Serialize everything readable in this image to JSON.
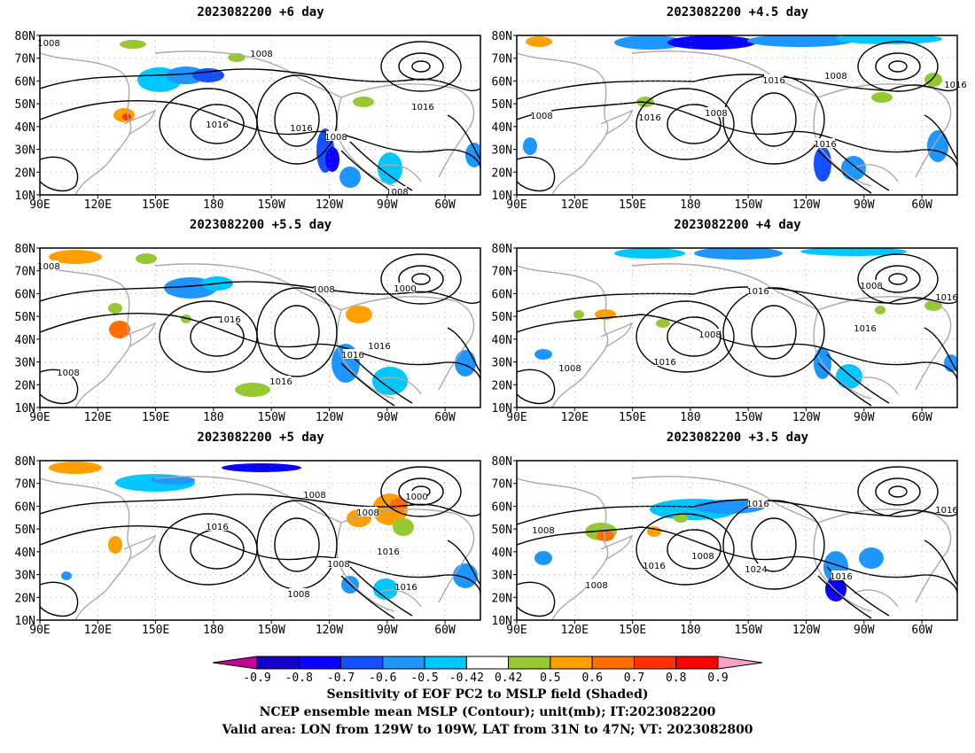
{
  "panels": [
    {
      "title": "2023082200  +6 day",
      "contour_labels": [
        "1008",
        "1008",
        "1016",
        "1016",
        "1016",
        "1008",
        "1008"
      ]
    },
    {
      "title": "2023082200  +4.5 day",
      "contour_labels": [
        "1008",
        "1016",
        "1008",
        "1008",
        "1016",
        "1016",
        "1016"
      ]
    },
    {
      "title": "2023082200  +5.5 day",
      "contour_labels": [
        "1008",
        "1008",
        "1000",
        "1016",
        "1016",
        "1016",
        "1008",
        "1016"
      ]
    },
    {
      "title": "2023082200  +4 day",
      "contour_labels": [
        "1016",
        "1008",
        "1008",
        "1016",
        "1016",
        "1008",
        "1016"
      ]
    },
    {
      "title": "2023082200  +5 day",
      "contour_labels": [
        "1008",
        "1000",
        "1008",
        "1016",
        "1016",
        "1008",
        "1016",
        "1008"
      ]
    },
    {
      "title": "2023082200  +3.5 day",
      "contour_labels": [
        "1008",
        "1016",
        "1016",
        "1016",
        "1008",
        "1024",
        "1016",
        "1008"
      ]
    }
  ],
  "lat_labels": [
    "80N",
    "70N",
    "60N",
    "50N",
    "40N",
    "30N",
    "20N",
    "10N"
  ],
  "lon_labels": [
    "90E",
    "120E",
    "150E",
    "180",
    "150W",
    "120W",
    "90W",
    "60W"
  ],
  "colorbar": {
    "levels": [
      "-0.9",
      "-0.8",
      "-0.7",
      "-0.6",
      "-0.5",
      "-0.42",
      "0.42",
      "0.5",
      "0.6",
      "0.7",
      "0.8",
      "0.9"
    ],
    "colors": [
      "#c8009b",
      "#1400c8",
      "#0a00ff",
      "#1450ff",
      "#1e96ff",
      "#00c8ff",
      "#ffffff",
      "#96c832",
      "#ffa000",
      "#ff6e00",
      "#ff3200",
      "#ff0000",
      "#ffa0c8"
    ]
  },
  "caption": {
    "line1": "Sensitivity of EOF PC2 to MSLP field (Shaded)",
    "line2": "NCEP ensemble mean MSLP (Contour); unit(mb); IT:2023082200",
    "line3": "Valid area: LON from 129W to 109W, LAT from 31N to 47N; VT: 2023082800"
  }
}
